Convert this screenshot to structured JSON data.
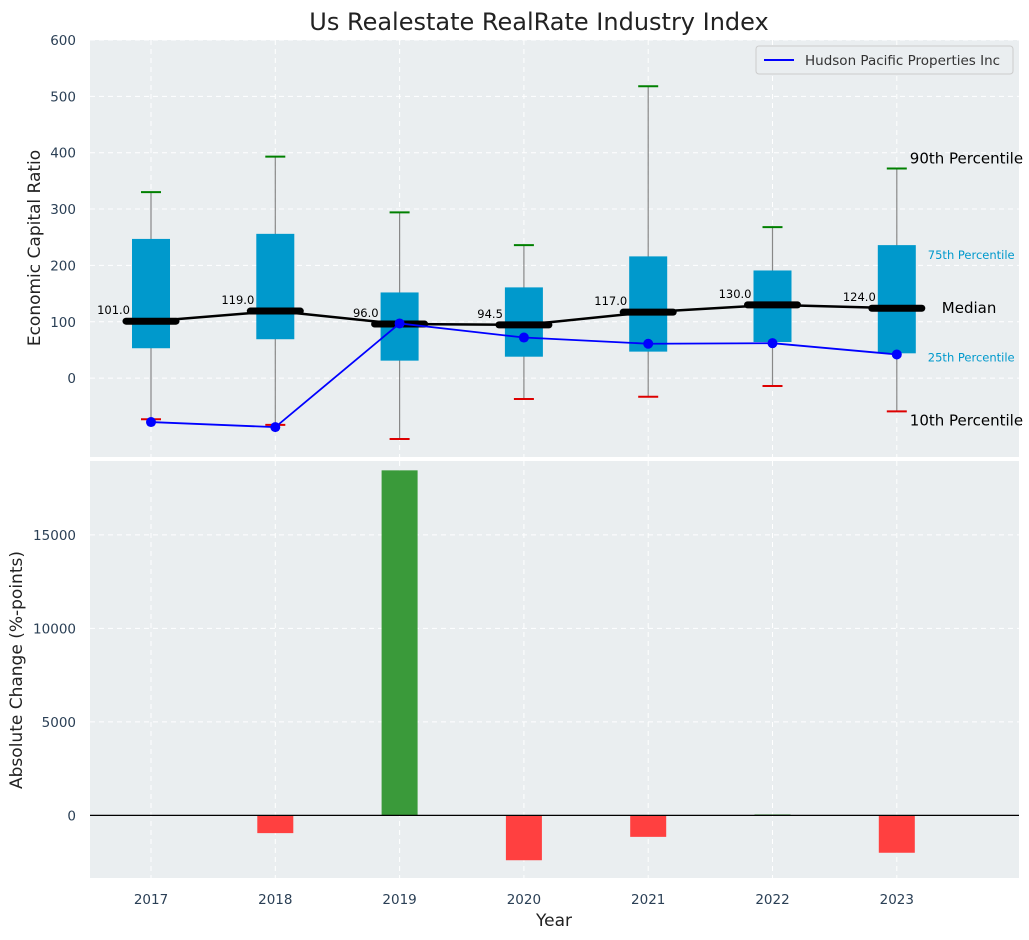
{
  "title": "Us Realestate RealRate Industry Index",
  "chart_data": [
    {
      "type": "box",
      "title": "Us Realestate RealRate Industry Index",
      "ylabel": "Economic Capital Ratio",
      "ylim": [
        -140,
        600
      ],
      "yticks": [
        0,
        100,
        200,
        300,
        400,
        500,
        600
      ],
      "categories": [
        "2017",
        "2018",
        "2019",
        "2020",
        "2021",
        "2022",
        "2023"
      ],
      "p10": [
        -73,
        -83,
        -108,
        -37,
        -33,
        -14,
        -59
      ],
      "p25": [
        53,
        69,
        31,
        38,
        47,
        64,
        44
      ],
      "median": [
        101.0,
        119.0,
        96.0,
        94.5,
        117.0,
        130.0,
        124.0
      ],
      "median_labels": [
        "101.0",
        "119.0",
        "96.0",
        "94.5",
        "117.0",
        "130.0",
        "124.0"
      ],
      "p75": [
        247,
        256,
        152,
        161,
        216,
        191,
        236
      ],
      "p90": [
        330,
        393,
        294,
        236,
        518,
        268,
        372
      ],
      "series": [
        {
          "name": "Hudson Pacific Properties Inc",
          "values": [
            -78,
            -87,
            97,
            72,
            61,
            62,
            42
          ]
        }
      ],
      "percentile_labels": {
        "p90": "90th Percentile",
        "p75": "75th Percentile",
        "median": "Median",
        "p25": "25th Percentile",
        "p10": "10th Percentile"
      },
      "legend_position": "top-right",
      "grid": true
    },
    {
      "type": "bar",
      "xlabel": "Year",
      "ylabel": "Absolute Change (%-points)",
      "categories": [
        "2017",
        "2018",
        "2019",
        "2020",
        "2021",
        "2022",
        "2023"
      ],
      "values": [
        0,
        -950,
        18450,
        -2400,
        -1150,
        50,
        -2000
      ],
      "ylim": [
        -3350,
        18950
      ],
      "yticks": [
        0,
        5000,
        10000,
        15000
      ],
      "grid": true
    }
  ],
  "colors": {
    "background": "#eaeef0",
    "box": "#0099cc",
    "median": "#000000",
    "company_line": "#0000ff",
    "p90_cap": "#008000",
    "p10_cap": "#dd0000",
    "positive_bar": "#3a9a3a",
    "negative_bar": "#ff4040",
    "text": "#2a3f55"
  }
}
